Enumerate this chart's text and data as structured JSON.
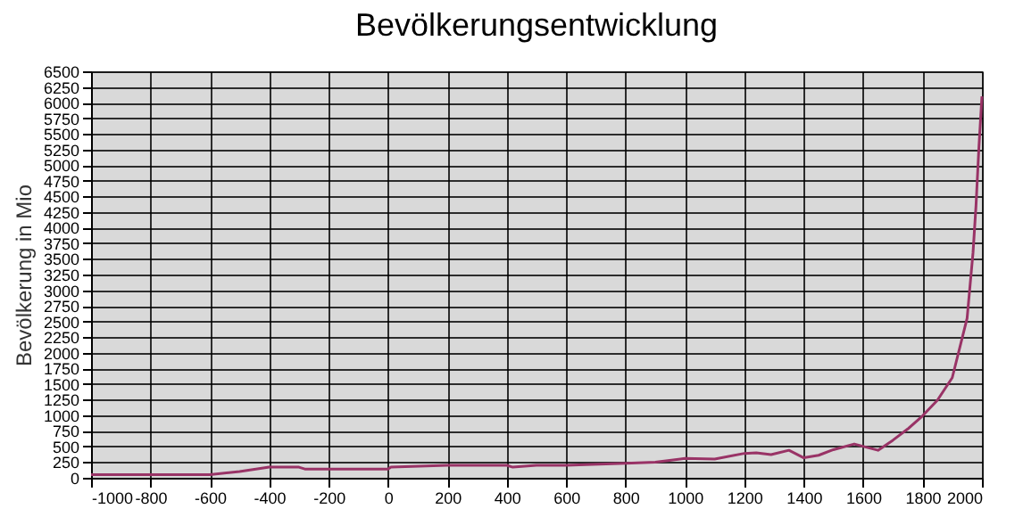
{
  "chart_data": {
    "type": "line",
    "title": "Bevölkerungsentwicklung",
    "ylabel": "Bevölkerung in Mio",
    "x": [
      -1000,
      -600,
      -500,
      -400,
      -300,
      -280,
      0,
      10,
      200,
      400,
      420,
      500,
      600,
      800,
      900,
      1000,
      1100,
      1200,
      1240,
      1290,
      1350,
      1400,
      1450,
      1500,
      1570,
      1650,
      1700,
      1750,
      1800,
      1850,
      1900,
      1950,
      1970,
      1980,
      1990,
      2000
    ],
    "series": [
      {
        "color": "#993366",
        "values": [
          50,
          50,
          100,
          170,
          170,
          140,
          140,
          170,
          200,
          200,
          170,
          200,
          200,
          230,
          250,
          310,
          300,
          390,
          400,
          370,
          440,
          320,
          360,
          450,
          540,
          440,
          600,
          780,
          990,
          1240,
          1600,
          2550,
          3600,
          4350,
          5300,
          6100
        ]
      }
    ],
    "xlim": [
      -1000,
      2000
    ],
    "xticks": [
      -1000,
      -800,
      -600,
      -400,
      -200,
      0,
      200,
      400,
      600,
      800,
      1000,
      1200,
      1400,
      1600,
      1800,
      2000
    ],
    "ylim": [
      0,
      6500
    ],
    "yticks": [
      0,
      250,
      500,
      750,
      1000,
      1250,
      1500,
      1750,
      2000,
      2250,
      2500,
      2750,
      3000,
      3250,
      3500,
      3750,
      4000,
      4250,
      4500,
      4750,
      5000,
      5250,
      5500,
      5750,
      6000,
      6250,
      6500
    ],
    "grid": true
  }
}
